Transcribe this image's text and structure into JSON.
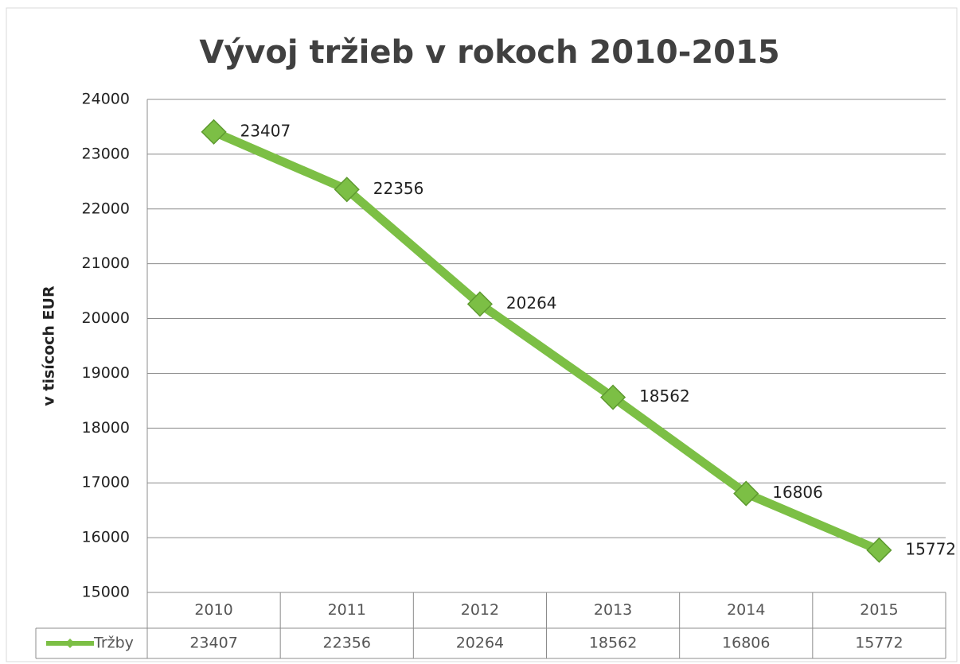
{
  "chart_data": {
    "type": "line",
    "title": "Vývoj tržieb v rokoch 2010-2015",
    "y_label": "v tisícoch EUR",
    "categories": [
      "2010",
      "2011",
      "2012",
      "2013",
      "2014",
      "2015"
    ],
    "series": [
      {
        "name": "Tržby",
        "color": "#7cbf45",
        "values": [
          23407,
          22356,
          20264,
          18562,
          16806,
          15772
        ]
      }
    ],
    "ylim": [
      15000,
      24000
    ],
    "yticks": [
      15000,
      16000,
      17000,
      18000,
      19000,
      20000,
      21000,
      22000,
      23000,
      24000
    ],
    "grid": true,
    "data_table": true
  }
}
